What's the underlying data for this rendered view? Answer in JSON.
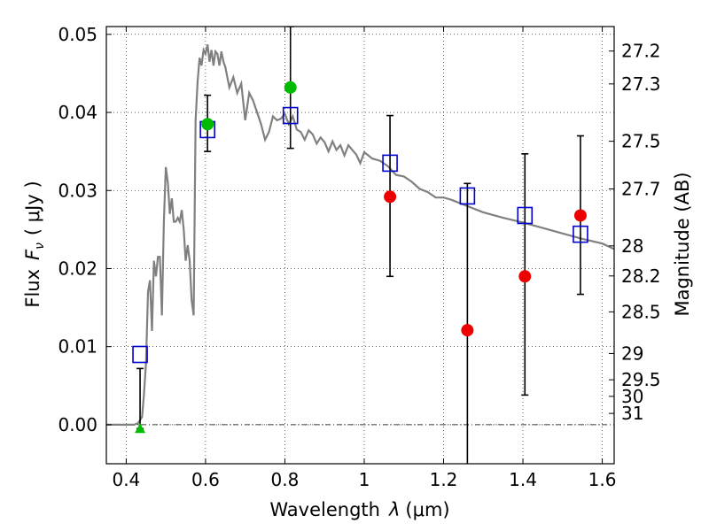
{
  "chart_data": {
    "type": "scatter",
    "title": "",
    "xlabel": "Wavelength",
    "xlabel_symbol": "λ",
    "xlabel_unit": "(μm)",
    "ylabel": "Flux",
    "ylabel_symbol": "F",
    "ylabel_symbol_sub": "ν",
    "ylabel_unit": "( μJy )",
    "y2label": "Magnitude (AB)",
    "xlim": [
      0.35,
      1.63
    ],
    "ylim": [
      -0.005,
      0.051
    ],
    "grid": true,
    "x_ticks": [
      0.4,
      0.6,
      0.8,
      1.0,
      1.2,
      1.4,
      1.6
    ],
    "x_tick_labels": [
      "0.4",
      "0.6",
      "0.8",
      "1",
      "1.2",
      "1.4",
      "1.6"
    ],
    "y_ticks": [
      0.0,
      0.01,
      0.02,
      0.03,
      0.04,
      0.05
    ],
    "y_tick_labels": [
      "0.00",
      "0.01",
      "0.02",
      "0.03",
      "0.04",
      "0.05"
    ],
    "y2_ticks": [
      "27.2",
      "27.3",
      "27.5",
      "27.7",
      "28",
      "28.2",
      "28.5",
      "29",
      "29.5",
      "30",
      "31"
    ],
    "series": [
      {
        "kind": "model_sed",
        "color": "#808080",
        "x": [
          0.35,
          0.42,
          0.43,
          0.44,
          0.445,
          0.45,
          0.455,
          0.46,
          0.465,
          0.47,
          0.475,
          0.48,
          0.485,
          0.49,
          0.495,
          0.5,
          0.505,
          0.51,
          0.515,
          0.52,
          0.525,
          0.53,
          0.535,
          0.54,
          0.545,
          0.55,
          0.555,
          0.56,
          0.565,
          0.57,
          0.575,
          0.58,
          0.585,
          0.59,
          0.595,
          0.6,
          0.605,
          0.61,
          0.615,
          0.62,
          0.625,
          0.63,
          0.635,
          0.64,
          0.645,
          0.65,
          0.66,
          0.67,
          0.68,
          0.69,
          0.7,
          0.71,
          0.72,
          0.73,
          0.74,
          0.75,
          0.76,
          0.77,
          0.78,
          0.79,
          0.8,
          0.81,
          0.82,
          0.83,
          0.84,
          0.85,
          0.86,
          0.87,
          0.88,
          0.89,
          0.9,
          0.91,
          0.92,
          0.93,
          0.94,
          0.95,
          0.96,
          0.97,
          0.98,
          0.99,
          1.0,
          1.02,
          1.04,
          1.06,
          1.08,
          1.1,
          1.12,
          1.14,
          1.16,
          1.18,
          1.2,
          1.22,
          1.25,
          1.3,
          1.35,
          1.4,
          1.45,
          1.5,
          1.55,
          1.6,
          1.63
        ],
        "y": [
          0.0,
          0.0,
          0.0002,
          0.001,
          0.004,
          0.008,
          0.017,
          0.0185,
          0.012,
          0.021,
          0.019,
          0.0215,
          0.0215,
          0.014,
          0.026,
          0.033,
          0.031,
          0.027,
          0.029,
          0.026,
          0.026,
          0.0265,
          0.026,
          0.0275,
          0.025,
          0.021,
          0.023,
          0.021,
          0.016,
          0.014,
          0.039,
          0.044,
          0.047,
          0.046,
          0.048,
          0.0475,
          0.0487,
          0.0465,
          0.048,
          0.046,
          0.0478,
          0.0475,
          0.046,
          0.0478,
          0.0465,
          0.0458,
          0.0432,
          0.0445,
          0.0425,
          0.0437,
          0.039,
          0.0425,
          0.0415,
          0.04,
          0.0385,
          0.0365,
          0.0375,
          0.0395,
          0.039,
          0.0392,
          0.0398,
          0.0385,
          0.0395,
          0.0378,
          0.0375,
          0.0365,
          0.0377,
          0.0372,
          0.036,
          0.0368,
          0.0362,
          0.035,
          0.0363,
          0.0352,
          0.0358,
          0.0345,
          0.0358,
          0.0352,
          0.0346,
          0.0335,
          0.0349,
          0.0341,
          0.0338,
          0.0331,
          0.032,
          0.0318,
          0.0311,
          0.0302,
          0.0298,
          0.0291,
          0.0291,
          0.0288,
          0.0282,
          0.0272,
          0.0265,
          0.0259,
          0.0252,
          0.0245,
          0.0238,
          0.0232,
          0.0225
        ]
      },
      {
        "kind": "model_synthetic_photometry",
        "marker": "open-square",
        "color": "#0000cc",
        "x": [
          0.435,
          0.605,
          0.814,
          1.065,
          1.26,
          1.405,
          1.545
        ],
        "y": [
          0.009,
          0.0378,
          0.0396,
          0.0335,
          0.0293,
          0.0268,
          0.0244
        ]
      },
      {
        "kind": "observed_detection",
        "marker": "filled-circle",
        "color": "#00bb00",
        "x": [
          0.605,
          0.814
        ],
        "y": [
          0.0385,
          0.0432
        ],
        "yerr_low": [
          0.0035,
          0.0078
        ],
        "yerr_high": [
          0.0037,
          0.0078
        ]
      },
      {
        "kind": "observed_nondetection",
        "marker": "filled-circle",
        "color": "#ee0000",
        "x": [
          1.065,
          1.26,
          1.405,
          1.545
        ],
        "y": [
          0.0292,
          0.0121,
          0.019,
          0.0268
        ],
        "yerr_low": [
          0.0102,
          0.0188,
          0.0152,
          0.0101
        ],
        "yerr_high": [
          0.0104,
          0.0188,
          0.0157,
          0.0102
        ]
      },
      {
        "kind": "upper_limit",
        "marker": "filled-triangle",
        "color": "#00bb00",
        "x": [
          0.435
        ],
        "y": [
          -0.0005
        ],
        "yerr_low": [
          0.0
        ],
        "yerr_high": [
          0.0077
        ]
      }
    ]
  }
}
